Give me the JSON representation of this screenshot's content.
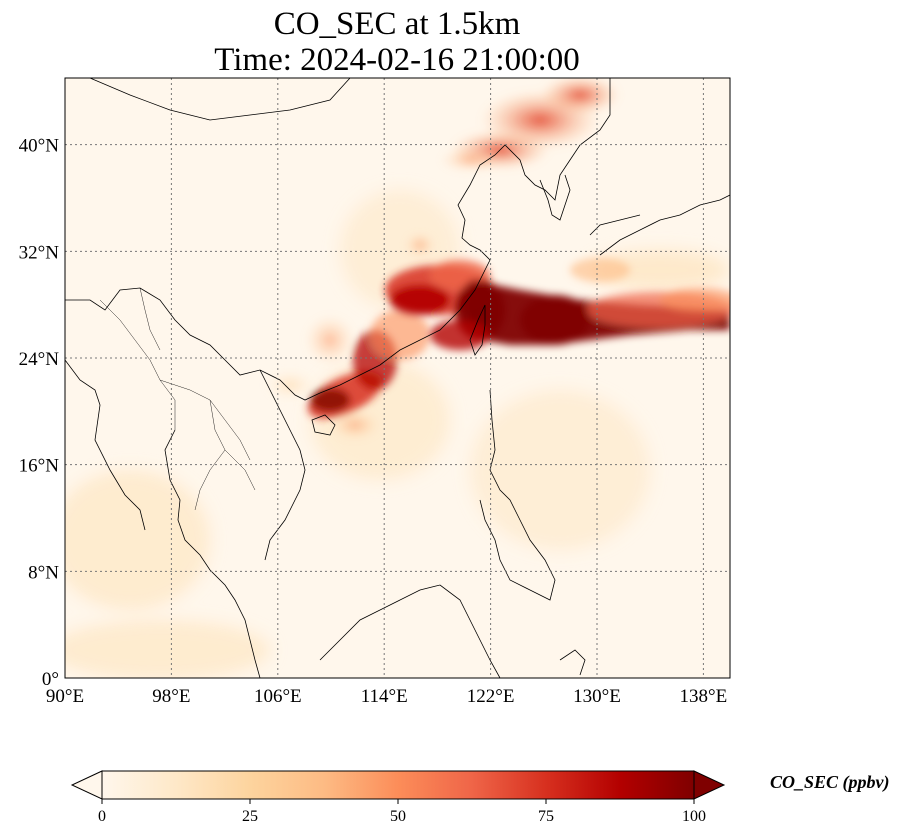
{
  "title": {
    "line1": "CO_SEC at 1.5km",
    "line2": "Time: 2024-02-16 21:00:00"
  },
  "map": {
    "projection": "PlateCarree",
    "lon_range": [
      90,
      140
    ],
    "lat_range": [
      0,
      45
    ],
    "gridlines": "dotted",
    "lon_ticks": [
      {
        "value": 90,
        "label": "90°E"
      },
      {
        "value": 98,
        "label": "98°E"
      },
      {
        "value": 106,
        "label": "106°E"
      },
      {
        "value": 114,
        "label": "114°E"
      },
      {
        "value": 122,
        "label": "122°E"
      },
      {
        "value": 130,
        "label": "130°E"
      },
      {
        "value": 138,
        "label": "138°E"
      }
    ],
    "lat_ticks": [
      {
        "value": 0,
        "label": "0°"
      },
      {
        "value": 8,
        "label": "8°N"
      },
      {
        "value": 16,
        "label": "16°N"
      },
      {
        "value": 24,
        "label": "24°N"
      },
      {
        "value": 32,
        "label": "32°N"
      },
      {
        "value": 40,
        "label": "40°N"
      }
    ]
  },
  "colorbar": {
    "label": "CO_SEC (ppbv)",
    "colormap": "OrRd",
    "range": [
      0,
      100
    ],
    "extend": "both",
    "ticks": [
      {
        "value": 0,
        "label": "0"
      },
      {
        "value": 25,
        "label": "25"
      },
      {
        "value": 50,
        "label": "50"
      },
      {
        "value": 75,
        "label": "75"
      },
      {
        "value": 100,
        "label": "100"
      }
    ],
    "colors": [
      "#fff7ec",
      "#fee8c8",
      "#fdd49e",
      "#fdbb84",
      "#fc8d59",
      "#ef6548",
      "#d7301f",
      "#b30000",
      "#7f0000"
    ]
  },
  "plume_regions": [
    {
      "name": "main-plume-east-china-sea",
      "lon_range": [
        116,
        140
      ],
      "lat_range": [
        24,
        31
      ],
      "level": 100
    },
    {
      "name": "south-china-coast-plume",
      "lon_range": [
        108,
        120
      ],
      "lat_range": [
        18,
        26
      ],
      "level": 90
    },
    {
      "name": "north-korea-bohai-plume",
      "lon_range": [
        118,
        132
      ],
      "lat_range": [
        38,
        45
      ],
      "level": 45
    }
  ]
}
